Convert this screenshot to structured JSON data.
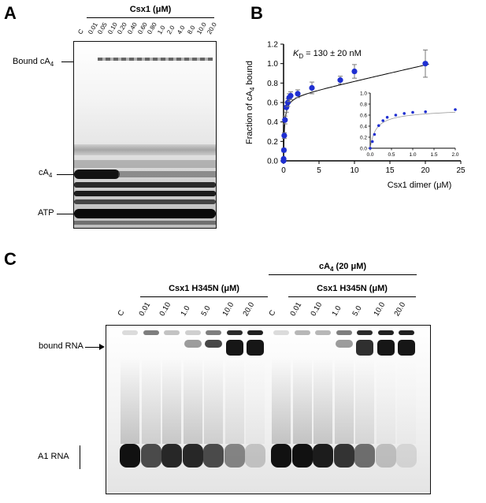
{
  "panels": {
    "a": {
      "letter": "A"
    },
    "b": {
      "letter": "B"
    },
    "c": {
      "letter": "C"
    }
  },
  "panel_a": {
    "header": "Csx1 (μM)",
    "lanes": [
      "C",
      "0.01",
      "0.05",
      "0.10",
      "0.20",
      "0.40",
      "0.60",
      "0.80",
      "1.0",
      "2.0",
      "4.0",
      "8.0",
      "10.0",
      "20.0"
    ],
    "labels": {
      "bound_prefix": "Bound cA",
      "bound_sub": "4",
      "ca4_prefix": "cA",
      "ca4_sub": "4",
      "atp": "ATP"
    }
  },
  "panel_c": {
    "group1_header": "Csx1 H345N (μM)",
    "group2_top_header_prefix": "cA",
    "group2_top_header_sub": "4",
    "group2_top_header_suffix": " (20 μM)",
    "group2_header": "Csx1 H345N (μM)",
    "lanes_group1": [
      "C",
      "0.01",
      "0.10",
      "1.0",
      "5.0",
      "10.0",
      "20.0"
    ],
    "lanes_group2": [
      "C",
      "0.01",
      "0.10",
      "1.0",
      "5.0",
      "10.0",
      "20.0"
    ],
    "labels": {
      "bound": "bound RNA",
      "a1": "A1 RNA"
    }
  },
  "chart_data": {
    "type": "scatter",
    "kd_label": "K",
    "kd_sub": "D",
    "kd_value": " = 130 ± 20 nM",
    "xlabel": "Csx1 dimer (μM)",
    "ylabel_prefix": "Fraction of cA",
    "ylabel_sub": "4",
    "ylabel_suffix": " bound",
    "xlim": [
      0,
      25
    ],
    "ylim": [
      0,
      1.2
    ],
    "xticks": [
      "0",
      "5",
      "10",
      "15",
      "20",
      "25"
    ],
    "yticks": [
      "0.0",
      "0.2",
      "0.4",
      "0.6",
      "0.8",
      "1.0",
      "1.2"
    ],
    "points": [
      {
        "x": 0,
        "y": 0,
        "err": 0
      },
      {
        "x": 0.01,
        "y": 0.02,
        "err": 0.01
      },
      {
        "x": 0.05,
        "y": 0.11,
        "err": 0.02
      },
      {
        "x": 0.1,
        "y": 0.26,
        "err": 0.03
      },
      {
        "x": 0.2,
        "y": 0.42,
        "err": 0.04
      },
      {
        "x": 0.4,
        "y": 0.55,
        "err": 0.05
      },
      {
        "x": 0.6,
        "y": 0.6,
        "err": 0.04
      },
      {
        "x": 0.8,
        "y": 0.65,
        "err": 0.04
      },
      {
        "x": 1.0,
        "y": 0.67,
        "err": 0.04
      },
      {
        "x": 2.0,
        "y": 0.69,
        "err": 0.04
      },
      {
        "x": 4.0,
        "y": 0.75,
        "err": 0.06
      },
      {
        "x": 8.0,
        "y": 0.83,
        "err": 0.04
      },
      {
        "x": 10.0,
        "y": 0.92,
        "err": 0.07
      },
      {
        "x": 20.0,
        "y": 1.0,
        "err": 0.14
      }
    ],
    "inset": {
      "xlim": [
        0,
        2
      ],
      "ylim": [
        0,
        1
      ],
      "xticks": [
        "0.0",
        "0.5",
        "1.0",
        "1.5",
        "2.0"
      ],
      "yticks": [
        "0.0",
        "0.2",
        "0.4",
        "0.6",
        "0.8",
        "1.0"
      ],
      "points": [
        {
          "x": 0,
          "y": 0
        },
        {
          "x": 0.05,
          "y": 0.12
        },
        {
          "x": 0.1,
          "y": 0.25
        },
        {
          "x": 0.2,
          "y": 0.41
        },
        {
          "x": 0.3,
          "y": 0.5
        },
        {
          "x": 0.4,
          "y": 0.56
        },
        {
          "x": 0.6,
          "y": 0.6
        },
        {
          "x": 0.8,
          "y": 0.63
        },
        {
          "x": 1.0,
          "y": 0.65
        },
        {
          "x": 1.3,
          "y": 0.66
        },
        {
          "x": 2.0,
          "y": 0.7
        }
      ]
    },
    "color": "#1f2fd1"
  }
}
